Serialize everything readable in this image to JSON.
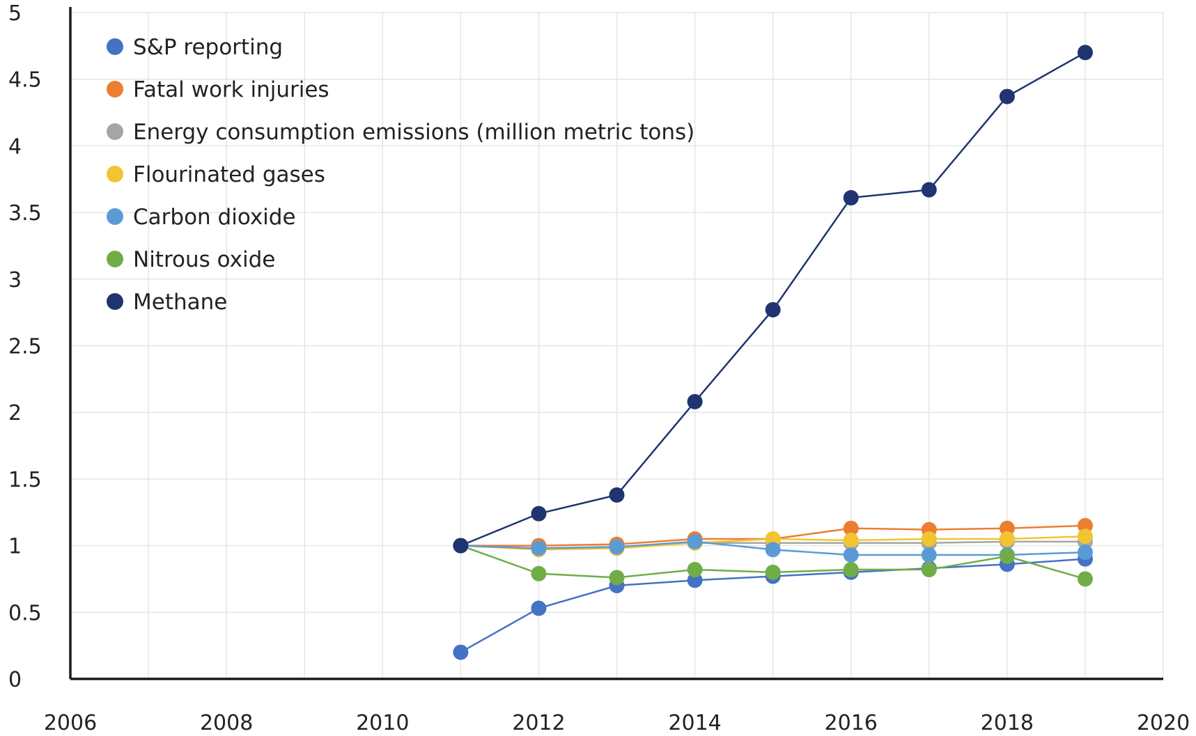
{
  "chart_data": {
    "type": "line",
    "title": "",
    "xlabel": "",
    "ylabel": "",
    "xlim": [
      2006,
      2020
    ],
    "ylim": [
      0,
      5
    ],
    "x_ticks": [
      2006,
      2008,
      2010,
      2012,
      2014,
      2016,
      2018,
      2020
    ],
    "y_ticks": [
      0,
      0.5,
      1,
      1.5,
      2,
      2.5,
      3,
      3.5,
      4,
      4.5,
      5
    ],
    "x_tick_labels": [
      "2006",
      "2008",
      "2010",
      "2012",
      "2014",
      "2016",
      "2018",
      "2020"
    ],
    "y_tick_labels": [
      "0",
      "0.5",
      "1",
      "1.5",
      "2",
      "2.5",
      "3",
      "3.5",
      "4",
      "4.5",
      "5"
    ],
    "grid": true,
    "legend_position": "top-left",
    "x": [
      2011,
      2012,
      2013,
      2014,
      2015,
      2016,
      2017,
      2018,
      2019
    ],
    "series": [
      {
        "name": "S&P reporting",
        "color": "#4472c4",
        "values": [
          0.2,
          0.53,
          0.7,
          0.74,
          0.77,
          0.8,
          0.83,
          0.86,
          0.9
        ]
      },
      {
        "name": "Fatal work injuries",
        "color": "#ed7d31",
        "values": [
          1.0,
          1.0,
          1.01,
          1.05,
          1.05,
          1.13,
          1.12,
          1.13,
          1.15
        ]
      },
      {
        "name": "Energy consumption emissions (million metric tons)",
        "color": "#a5a5a5",
        "values": [
          1.0,
          0.98,
          0.99,
          1.02,
          1.02,
          1.02,
          1.02,
          1.03,
          1.03
        ]
      },
      {
        "name": "Flourinated gases",
        "color": "#f2c431",
        "values": [
          1.0,
          0.97,
          0.98,
          1.02,
          1.05,
          1.04,
          1.05,
          1.05,
          1.07
        ]
      },
      {
        "name": "Carbon dioxide",
        "color": "#5b9bd5",
        "values": [
          1.0,
          0.98,
          0.99,
          1.03,
          0.97,
          0.93,
          0.93,
          0.93,
          0.95
        ]
      },
      {
        "name": "Nitrous oxide",
        "color": "#70ad47",
        "values": [
          1.0,
          0.79,
          0.76,
          0.82,
          0.8,
          0.82,
          0.82,
          0.92,
          0.75
        ]
      },
      {
        "name": "Methane",
        "color": "#1f3470",
        "values": [
          1.0,
          1.24,
          1.38,
          2.08,
          2.77,
          3.61,
          3.67,
          4.37,
          4.7
        ]
      }
    ]
  }
}
